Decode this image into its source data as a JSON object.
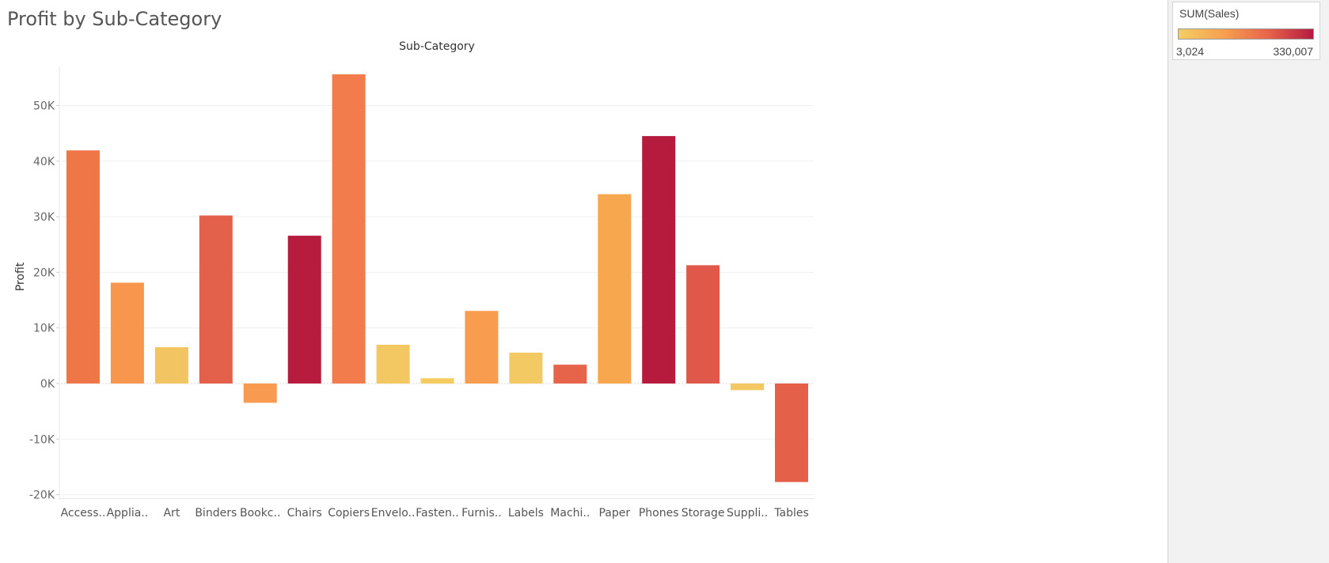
{
  "page": {
    "title": "Profit by Sub-Category"
  },
  "legend": {
    "title": "SUM(Sales)",
    "min_label": "3,024",
    "max_label": "330,007",
    "ramp_colors": [
      "#f4cd63",
      "#f6a050",
      "#e8634a",
      "#b41a40"
    ]
  },
  "chart_data": {
    "type": "bar",
    "xlabel": "Sub-Category",
    "ylabel": "Profit",
    "ylim": [
      -20000,
      57000
    ],
    "yticks": [
      -20000,
      -10000,
      0,
      10000,
      20000,
      30000,
      40000,
      50000
    ],
    "ytick_labels": [
      "-20K",
      "-10K",
      "0K",
      "10K",
      "20K",
      "30K",
      "40K",
      "50K"
    ],
    "grid": true,
    "legend_placement": "top-right",
    "categories": [
      "Access..",
      "Applia..",
      "Art",
      "Binders",
      "Bookc..",
      "Chairs",
      "Copiers",
      "Envelo..",
      "Fasten..",
      "Furnis..",
      "Labels",
      "Machi..",
      "Paper",
      "Phones",
      "Storage",
      "Suppli..",
      "Tables"
    ],
    "values": [
      41937,
      18138,
      6528,
      30222,
      -3473,
      26590,
      55618,
      6964,
      950,
      13059,
      5546,
      3385,
      34054,
      44516,
      21279,
      -1189,
      -17725
    ],
    "colors": [
      "#ef7647",
      "#f8964d",
      "#f3c462",
      "#e3614a",
      "#f89a4f",
      "#b71c3e",
      "#f27c4b",
      "#f3c862",
      "#f4cc62",
      "#f89d4f",
      "#f3c963",
      "#e5644a",
      "#f7a84f",
      "#b61b3e",
      "#e05849",
      "#f4c862",
      "#e46049"
    ]
  }
}
